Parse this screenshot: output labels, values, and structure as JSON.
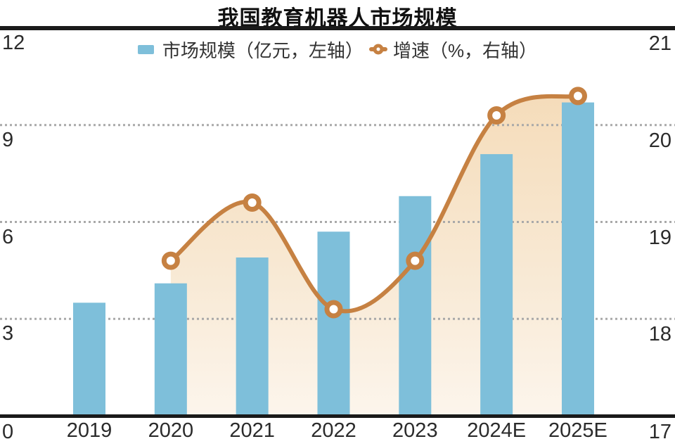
{
  "title": "我国教育机器人市场规模",
  "legend": {
    "bar_label": "市场规模（亿元，左轴）",
    "line_label": "增速（%，右轴）"
  },
  "colors": {
    "bar": "#7ebfda",
    "line": "#c68142",
    "area_top": "#f5dcba",
    "area_mid": "#f8e9d4",
    "area_bottom": "#fcf5ec",
    "grid": "#a9a9a9",
    "axis": "#1a1a1a",
    "text": "#2b2b2b"
  },
  "chart_data": {
    "type": "bar",
    "subtype": "bar+line dual-axis combo",
    "title": "我国教育机器人市场规模",
    "categories": [
      "2019",
      "2020",
      "2021",
      "2022",
      "2023",
      "2024E",
      "2025E"
    ],
    "series": [
      {
        "name": "市场规模（亿元，左轴）",
        "type": "bar",
        "axis": "left",
        "unit": "亿元",
        "values": [
          3.5,
          4.1,
          4.9,
          5.7,
          6.8,
          8.1,
          9.7
        ]
      },
      {
        "name": "增速（%，右轴）",
        "type": "line",
        "axis": "right",
        "unit": "%",
        "values": [
          null,
          18.6,
          19.2,
          18.1,
          18.6,
          20.1,
          20.3
        ]
      }
    ],
    "left_axis": {
      "label": "亿元",
      "range": [
        0,
        12
      ],
      "ticks": [
        0,
        3,
        6,
        9,
        12
      ]
    },
    "right_axis": {
      "label": "%",
      "range": [
        17,
        21
      ],
      "ticks": [
        17,
        18,
        19,
        20,
        21
      ]
    },
    "grid": "horizontal dotted lines at shared ticks (3/18, 6/19, 9/20)",
    "legend_position": "top center",
    "area_fill": "gradient peach area under growth line from 2020 to 2025E"
  }
}
